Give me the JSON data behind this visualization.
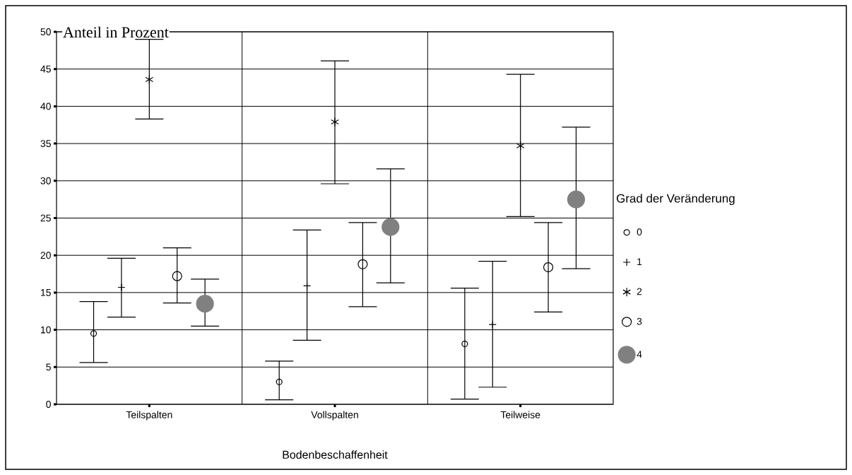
{
  "chart_data": {
    "type": "scatter",
    "ylabel": "Anteil in Prozent",
    "xlabel": "Bodenbeschaffenheit",
    "legend_title": "Grad der Veränderung",
    "categories": [
      "Teilspalten",
      "Vollspalten",
      "Teilweise"
    ],
    "ylim": [
      0,
      50
    ],
    "yticks": [
      0,
      5,
      10,
      15,
      20,
      25,
      30,
      35,
      40,
      45,
      50
    ],
    "grid": "y",
    "legend": "right",
    "series": [
      {
        "name": "0",
        "color": "#000000",
        "marker": "circle",
        "values": [
          9.5,
          3.0,
          8.1
        ],
        "errors": [
          [
            5.6,
            13.8
          ],
          [
            0.6,
            5.8
          ],
          [
            0.7,
            15.6
          ]
        ]
      },
      {
        "name": "1",
        "color": "#000000",
        "marker": "cross",
        "values": [
          15.7,
          15.9,
          10.7
        ],
        "errors": [
          [
            11.7,
            19.6
          ],
          [
            8.6,
            23.4
          ],
          [
            2.3,
            19.2
          ]
        ]
      },
      {
        "name": "2",
        "color": "#000000",
        "marker": "cross",
        "values": [
          43.6,
          37.9,
          34.7
        ],
        "errors": [
          [
            38.3,
            49.0
          ],
          [
            29.6,
            46.1
          ],
          [
            25.2,
            44.3
          ]
        ]
      },
      {
        "name": "3",
        "color": "#000000",
        "marker": "circle",
        "values": [
          17.2,
          18.8,
          18.4
        ],
        "errors": [
          [
            13.6,
            21.0
          ],
          [
            13.1,
            24.4
          ],
          [
            12.4,
            24.4
          ]
        ]
      },
      {
        "name": "4",
        "color": "#808080",
        "marker": "circle",
        "values": [
          13.5,
          23.8,
          27.5
        ],
        "errors": [
          [
            10.5,
            16.8
          ],
          [
            16.3,
            31.6
          ],
          [
            18.2,
            37.2
          ]
        ]
      }
    ]
  }
}
